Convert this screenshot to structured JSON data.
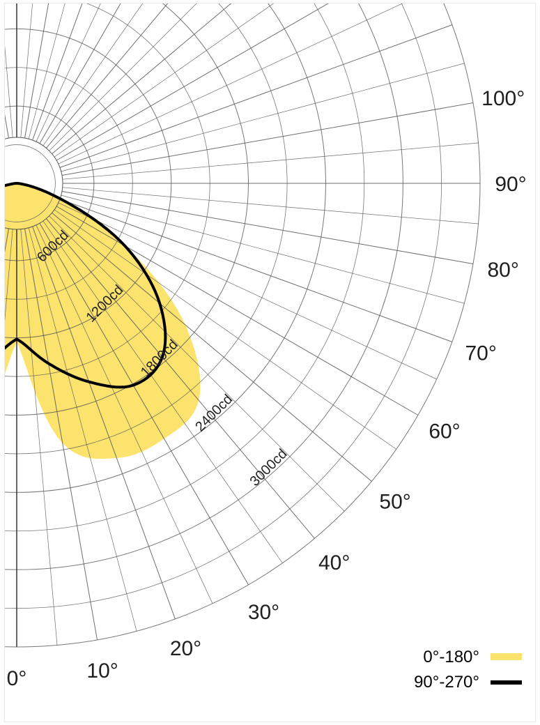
{
  "chart_data": {
    "type": "polar",
    "units": "cd",
    "radial_range": [
      0,
      3600
    ],
    "ring_labels": [
      "600cd",
      "1200cd",
      "1800cd",
      "2400cd",
      "3000cd"
    ],
    "ring_values": [
      600,
      1200,
      1800,
      2400,
      3000
    ],
    "angle_labels": [
      {
        "angle": 0,
        "text": "0°"
      },
      {
        "angle": 10,
        "text": "10°"
      },
      {
        "angle": 20,
        "text": "20°"
      },
      {
        "angle": 30,
        "text": "30°"
      },
      {
        "angle": 40,
        "text": "40°"
      },
      {
        "angle": 50,
        "text": "50°"
      },
      {
        "angle": 60,
        "text": "60°"
      },
      {
        "angle": 70,
        "text": "70°"
      },
      {
        "angle": 80,
        "text": "80°"
      },
      {
        "angle": 90,
        "text": "90°"
      },
      {
        "angle": 100,
        "text": "100°"
      }
    ],
    "legend": [
      {
        "label": "0°-180°",
        "color": "#fce36e",
        "style": "fill"
      },
      {
        "label": "90°-270°",
        "color": "#000000",
        "style": "line"
      }
    ],
    "series": [
      {
        "name": "0°-180°",
        "color": "#fce36e",
        "angles": [
          0,
          10,
          20,
          30,
          40,
          50,
          60,
          70,
          80,
          90
        ],
        "values": [
          1230,
          2050,
          2270,
          2290,
          2200,
          1710,
          980,
          350,
          0,
          0
        ]
      },
      {
        "name": "90°-270°",
        "color": "#000000",
        "angles": [
          0,
          10,
          20,
          30,
          40,
          50,
          60,
          70,
          80,
          90
        ],
        "values": [
          1210,
          1420,
          1640,
          1810,
          1760,
          1450,
          970,
          380,
          80,
          0
        ]
      }
    ]
  }
}
